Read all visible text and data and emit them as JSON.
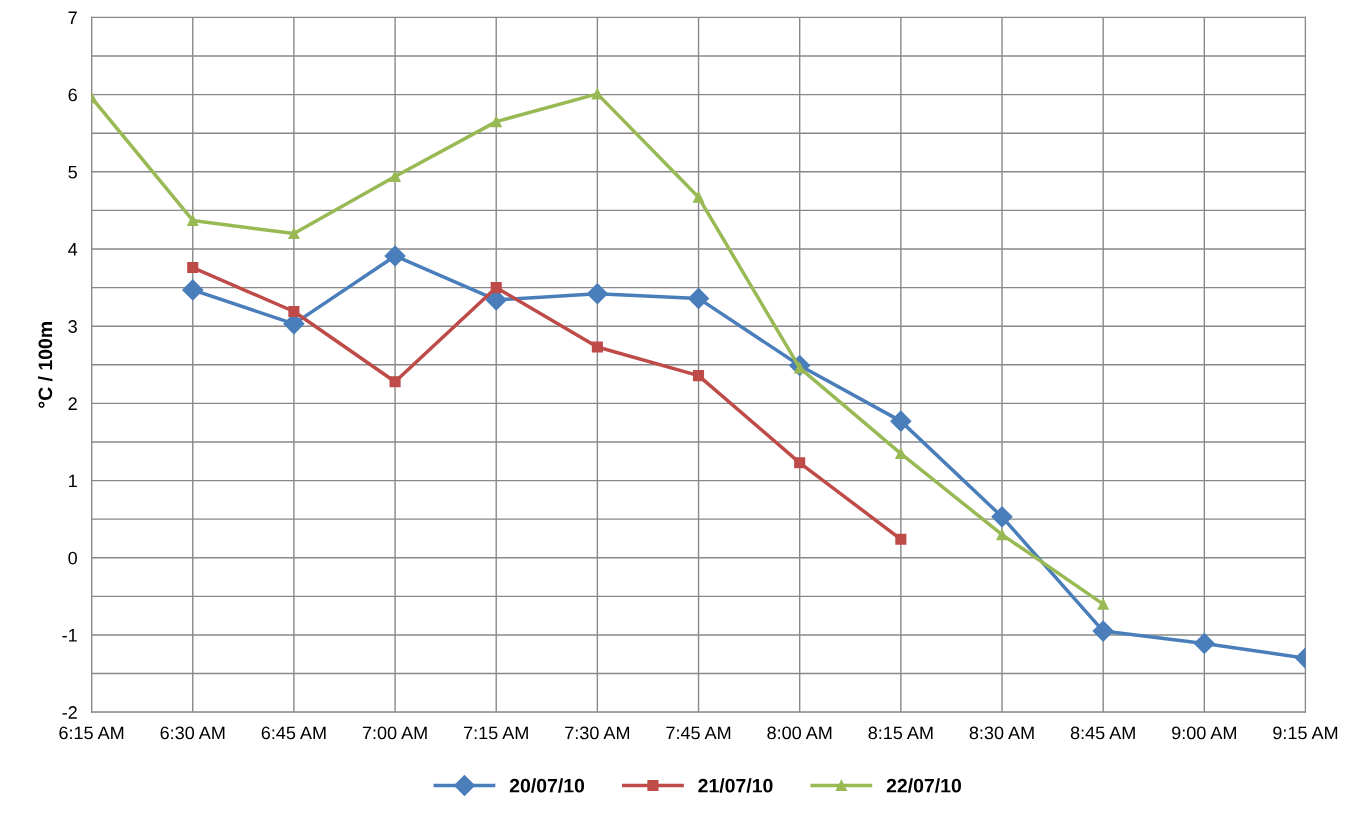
{
  "chart_data": {
    "type": "line",
    "ylabel": "°C / 100m",
    "categories": [
      "6:15 AM",
      "6:30 AM",
      "6:45 AM",
      "7:00 AM",
      "7:15 AM",
      "7:30 AM",
      "7:45 AM",
      "8:00 AM",
      "8:15 AM",
      "8:30 AM",
      "8:45 AM",
      "9:00 AM",
      "9:15 AM"
    ],
    "series": [
      {
        "name": "20/07/10",
        "color": "#4a7ebb",
        "marker": "diamond",
        "values": [
          null,
          3.47,
          3.03,
          3.91,
          3.34,
          3.42,
          3.36,
          2.49,
          1.77,
          0.53,
          -0.95,
          -1.11,
          -1.3
        ]
      },
      {
        "name": "21/07/10",
        "color": "#be4b48",
        "marker": "square",
        "values": [
          null,
          3.76,
          3.19,
          2.28,
          3.5,
          2.73,
          2.36,
          1.23,
          0.24,
          null,
          null,
          null,
          null
        ]
      },
      {
        "name": "22/07/10",
        "color": "#98b954",
        "marker": "triangle",
        "values": [
          5.96,
          4.37,
          4.2,
          4.94,
          5.65,
          6.01,
          4.67,
          2.46,
          1.35,
          0.3,
          -0.6,
          null,
          null
        ]
      }
    ],
    "ylim": [
      -2,
      7
    ],
    "yticks": [
      -2,
      {
        "value": -1.5,
        "label": null
      },
      -1,
      {
        "value": -0.5,
        "label": null
      },
      0,
      {
        "value": 0.5,
        "label": null
      },
      1,
      {
        "value": 1.5,
        "label": null
      },
      2,
      {
        "value": 2.5,
        "label": null
      },
      3,
      {
        "value": 3.5,
        "label": null
      },
      4,
      {
        "value": 4.5,
        "label": null
      },
      5,
      {
        "value": 5.5,
        "label": null
      },
      6,
      {
        "value": 6.5,
        "label": null
      },
      7
    ],
    "grid": true,
    "legend": "bottom",
    "line_style": "solid"
  }
}
